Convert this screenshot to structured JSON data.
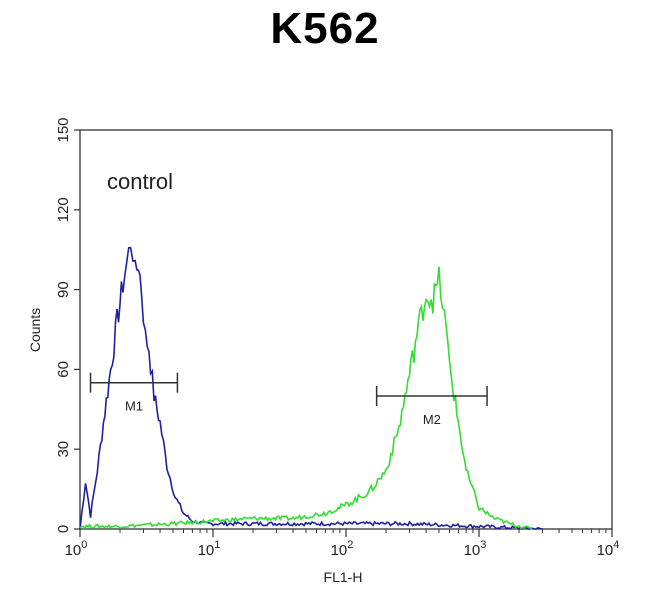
{
  "chart_data": {
    "type": "line",
    "title": "K562",
    "xlabel": "FL1-H",
    "ylabel": "Counts",
    "x_scale": "log",
    "xlim": [
      1,
      10000
    ],
    "ylim": [
      0,
      150
    ],
    "x_ticks": [
      {
        "base": "10",
        "exp": "0"
      },
      {
        "base": "10",
        "exp": "1"
      },
      {
        "base": "10",
        "exp": "2"
      },
      {
        "base": "10",
        "exp": "3"
      },
      {
        "base": "10",
        "exp": "4"
      }
    ],
    "y_ticks": [
      "0",
      "30",
      "60",
      "90",
      "120",
      "150"
    ],
    "y_tick_values": [
      0,
      30,
      60,
      90,
      120,
      150
    ],
    "annotation": "control",
    "series": [
      {
        "color": "#2020a0",
        "x": [
          1.0,
          1.1,
          1.2,
          1.35,
          1.5,
          1.7,
          1.9,
          2.1,
          2.25,
          2.4,
          2.5,
          2.6,
          2.75,
          2.9,
          3.1,
          3.3,
          3.6,
          4.0,
          4.5,
          5.2,
          6.0,
          7.0,
          8.5,
          10,
          15,
          30,
          100,
          300,
          1000,
          3000
        ],
        "y": [
          0,
          18,
          5,
          22,
          40,
          60,
          78,
          92,
          100,
          108,
          104,
          96,
          100,
          90,
          72,
          68,
          50,
          40,
          24,
          12,
          6,
          3,
          2,
          2,
          2,
          2,
          2,
          2,
          1,
          0
        ]
      },
      {
        "color": "#33dd33",
        "x": [
          1.0,
          2,
          5,
          10,
          20,
          40,
          70,
          100,
          150,
          200,
          250,
          300,
          350,
          400,
          450,
          500,
          550,
          600,
          700,
          800,
          1000,
          1300,
          1700,
          2500
        ],
        "y": [
          1,
          1,
          2,
          3,
          4,
          4,
          6,
          9,
          14,
          22,
          38,
          58,
          76,
          88,
          86,
          94,
          80,
          62,
          40,
          22,
          8,
          4,
          2,
          0
        ]
      }
    ],
    "markers": [
      {
        "label": "M1",
        "x_start": 1.2,
        "x_end": 5.4,
        "y": 55
      },
      {
        "label": "M2",
        "x_start": 170,
        "x_end": 1150,
        "y": 50
      }
    ]
  }
}
